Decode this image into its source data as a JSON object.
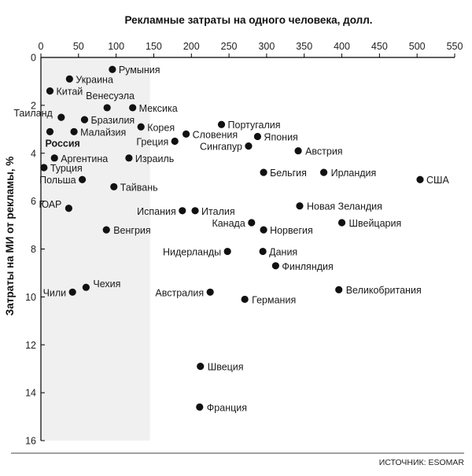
{
  "chart_data": {
    "type": "scatter",
    "xlabel": "Рекламные затраты на одного человека, долл.",
    "ylabel": "Затраты на МИ от рекламы, %",
    "xlim": [
      0,
      550
    ],
    "ylim": [
      0,
      16
    ],
    "x_ticks": [
      "0",
      "50",
      "100",
      "150",
      "200",
      "250",
      "300",
      "350",
      "400",
      "450",
      "500",
      "550"
    ],
    "y_ticks": [
      "0",
      "2",
      "4",
      "6",
      "8",
      "10",
      "12",
      "14",
      "16"
    ],
    "x_axis_position": "top",
    "y_axis_inverted": true,
    "shaded_x_range": [
      0,
      145
    ],
    "source": "ИСТОЧНИК: ESOMAR",
    "points": [
      {
        "label": "Румыния",
        "x": 95,
        "y": 0.5
      },
      {
        "label": "Украина",
        "x": 38,
        "y": 0.9
      },
      {
        "label": "Китай",
        "x": 12,
        "y": 1.4
      },
      {
        "label": "Венесуэла",
        "x": 88,
        "y": 2.1
      },
      {
        "label": "Мексика",
        "x": 122,
        "y": 2.1
      },
      {
        "label": "Таиланд",
        "x": 27,
        "y": 2.5
      },
      {
        "label": "Бразилия",
        "x": 58,
        "y": 2.6
      },
      {
        "label": "Корея",
        "x": 133,
        "y": 2.9
      },
      {
        "label": "Малайзия",
        "x": 44,
        "y": 3.1
      },
      {
        "label": "Россия",
        "x": 12,
        "y": 3.1,
        "highlight": true
      },
      {
        "label": "Греция",
        "x": 178,
        "y": 3.5
      },
      {
        "label": "Словения",
        "x": 193,
        "y": 3.2
      },
      {
        "label": "Португалия",
        "x": 240,
        "y": 2.8
      },
      {
        "label": "Япония",
        "x": 288,
        "y": 3.3
      },
      {
        "label": "Сингапур",
        "x": 276,
        "y": 3.7
      },
      {
        "label": "Австрия",
        "x": 342,
        "y": 3.9
      },
      {
        "label": "Аргентина",
        "x": 18,
        "y": 4.2
      },
      {
        "label": "Израиль",
        "x": 117,
        "y": 4.2
      },
      {
        "label": "Турция",
        "x": 4,
        "y": 4.6
      },
      {
        "label": "Польша",
        "x": 55,
        "y": 5.1
      },
      {
        "label": "Тайвань",
        "x": 97,
        "y": 5.4
      },
      {
        "label": "Бельгия",
        "x": 296,
        "y": 4.8
      },
      {
        "label": "Ирландия",
        "x": 376,
        "y": 4.8
      },
      {
        "label": "США",
        "x": 504,
        "y": 5.1
      },
      {
        "label": "ЮАР",
        "x": 37,
        "y": 6.3
      },
      {
        "label": "Испания",
        "x": 188,
        "y": 6.4
      },
      {
        "label": "Италия",
        "x": 205,
        "y": 6.4
      },
      {
        "label": "Новая Зеландия",
        "x": 344,
        "y": 6.2
      },
      {
        "label": "Канада",
        "x": 280,
        "y": 6.9
      },
      {
        "label": "Швейцария",
        "x": 400,
        "y": 6.9
      },
      {
        "label": "Норвегия",
        "x": 296,
        "y": 7.2
      },
      {
        "label": "Венгрия",
        "x": 87,
        "y": 7.2
      },
      {
        "label": "Нидерланды",
        "x": 248,
        "y": 8.1
      },
      {
        "label": "Дания",
        "x": 295,
        "y": 8.1
      },
      {
        "label": "Финляндия",
        "x": 312,
        "y": 8.7
      },
      {
        "label": "Чехия",
        "x": 60,
        "y": 9.6
      },
      {
        "label": "Чили",
        "x": 42,
        "y": 9.8
      },
      {
        "label": "Австралия",
        "x": 225,
        "y": 9.8
      },
      {
        "label": "Германия",
        "x": 271,
        "y": 10.1
      },
      {
        "label": "Великобритания",
        "x": 396,
        "y": 9.7
      },
      {
        "label": "Швеция",
        "x": 212,
        "y": 12.9
      },
      {
        "label": "Франция",
        "x": 211,
        "y": 14.6
      }
    ]
  }
}
